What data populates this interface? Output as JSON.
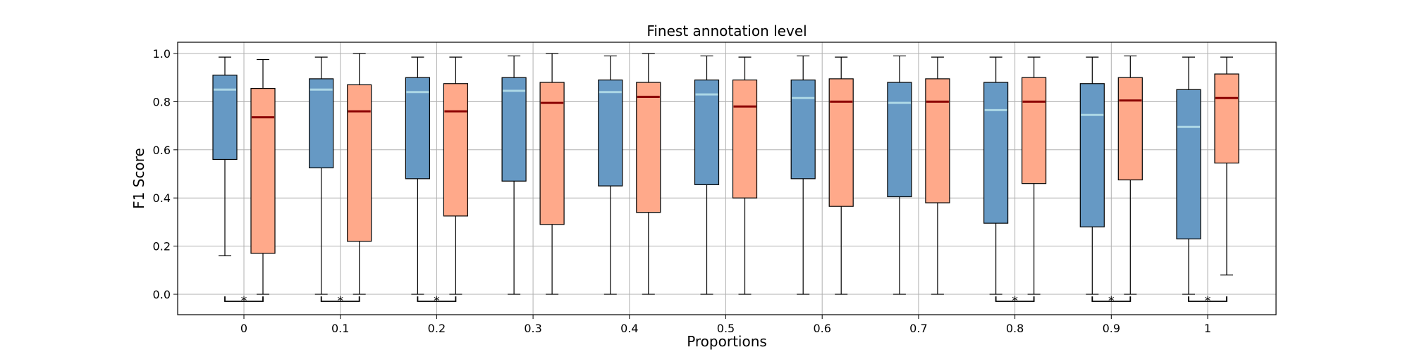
{
  "chart_data": {
    "type": "box",
    "title": "Finest annotation level",
    "xlabel": "Proportions",
    "ylabel": "F1 Score",
    "ylim": [
      -0.08,
      1.05
    ],
    "yticks": [
      "0.0",
      "0.2",
      "0.4",
      "0.6",
      "0.8",
      "1.0"
    ],
    "grid": true,
    "categories": [
      "0",
      "0.1",
      "0.2",
      "0.3",
      "0.4",
      "0.5",
      "0.6",
      "0.7",
      "0.8",
      "0.9",
      "1"
    ],
    "series": [
      {
        "color": "#6699c4",
        "median_color": "#add8e6",
        "boxes": [
          {
            "whislo": 0.16,
            "q1": 0.56,
            "med": 0.85,
            "q3": 0.91,
            "whishi": 0.985
          },
          {
            "whislo": 0.0,
            "q1": 0.525,
            "med": 0.85,
            "q3": 0.895,
            "whishi": 0.985
          },
          {
            "whislo": 0.0,
            "q1": 0.48,
            "med": 0.84,
            "q3": 0.9,
            "whishi": 0.985
          },
          {
            "whislo": 0.0,
            "q1": 0.47,
            "med": 0.845,
            "q3": 0.9,
            "whishi": 0.99
          },
          {
            "whislo": 0.0,
            "q1": 0.45,
            "med": 0.84,
            "q3": 0.89,
            "whishi": 0.99
          },
          {
            "whislo": 0.0,
            "q1": 0.455,
            "med": 0.83,
            "q3": 0.89,
            "whishi": 0.99
          },
          {
            "whislo": 0.0,
            "q1": 0.48,
            "med": 0.815,
            "q3": 0.89,
            "whishi": 0.99
          },
          {
            "whislo": 0.0,
            "q1": 0.405,
            "med": 0.795,
            "q3": 0.88,
            "whishi": 0.99
          },
          {
            "whislo": 0.0,
            "q1": 0.295,
            "med": 0.765,
            "q3": 0.88,
            "whishi": 0.985
          },
          {
            "whislo": 0.0,
            "q1": 0.28,
            "med": 0.745,
            "q3": 0.875,
            "whishi": 0.985
          },
          {
            "whislo": 0.0,
            "q1": 0.23,
            "med": 0.695,
            "q3": 0.85,
            "whishi": 0.985
          }
        ]
      },
      {
        "color": "#ffa98a",
        "median_color": "#8b0000",
        "boxes": [
          {
            "whislo": 0.0,
            "q1": 0.17,
            "med": 0.735,
            "q3": 0.855,
            "whishi": 0.975
          },
          {
            "whislo": 0.0,
            "q1": 0.22,
            "med": 0.76,
            "q3": 0.87,
            "whishi": 1.0
          },
          {
            "whislo": 0.0,
            "q1": 0.325,
            "med": 0.76,
            "q3": 0.875,
            "whishi": 0.985
          },
          {
            "whislo": 0.0,
            "q1": 0.29,
            "med": 0.795,
            "q3": 0.88,
            "whishi": 1.0
          },
          {
            "whislo": 0.0,
            "q1": 0.34,
            "med": 0.82,
            "q3": 0.88,
            "whishi": 1.0
          },
          {
            "whislo": 0.0,
            "q1": 0.4,
            "med": 0.78,
            "q3": 0.89,
            "whishi": 0.985
          },
          {
            "whislo": 0.0,
            "q1": 0.365,
            "med": 0.8,
            "q3": 0.895,
            "whishi": 0.985
          },
          {
            "whislo": 0.0,
            "q1": 0.38,
            "med": 0.8,
            "q3": 0.895,
            "whishi": 0.985
          },
          {
            "whislo": 0.0,
            "q1": 0.46,
            "med": 0.8,
            "q3": 0.9,
            "whishi": 0.985
          },
          {
            "whislo": 0.0,
            "q1": 0.475,
            "med": 0.805,
            "q3": 0.9,
            "whishi": 0.99
          },
          {
            "whislo": 0.08,
            "q1": 0.545,
            "med": 0.815,
            "q3": 0.915,
            "whishi": 0.985
          }
        ]
      }
    ],
    "significance": {
      "marker": "*",
      "categories": [
        "0",
        "0.1",
        "0.2",
        "0.8",
        "0.9",
        "1"
      ]
    }
  }
}
